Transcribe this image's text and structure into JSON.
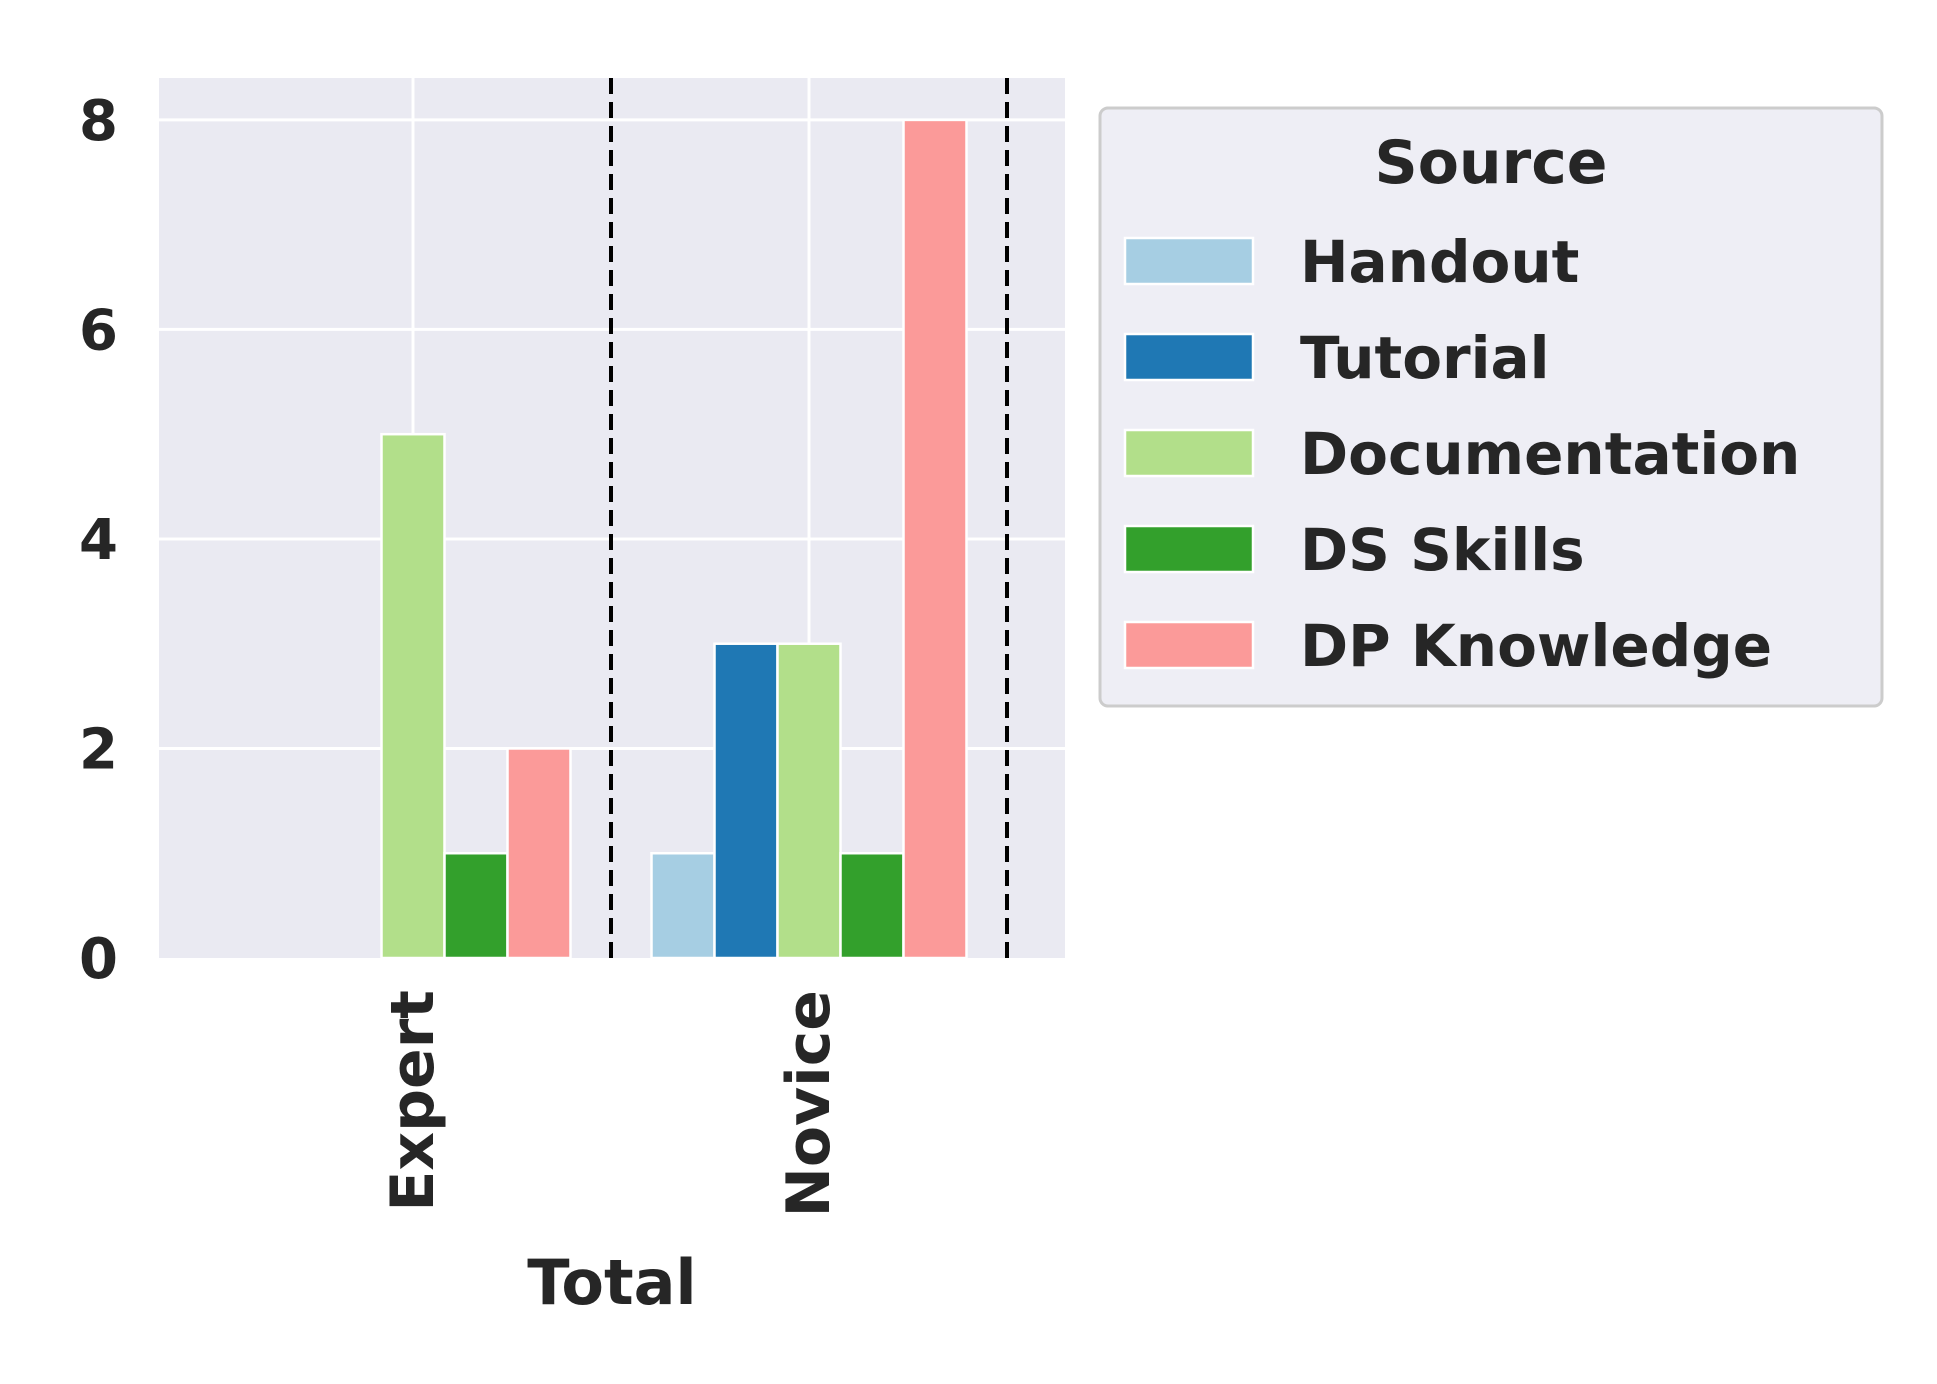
{
  "chart_data": {
    "type": "bar",
    "title": "",
    "xlabel": "Total",
    "ylabel": "",
    "categories": [
      "Expert",
      "Novice"
    ],
    "series": [
      {
        "name": "Handout",
        "color": "#a6cee3",
        "values": [
          0,
          1
        ]
      },
      {
        "name": "Tutorial",
        "color": "#1f78b4",
        "values": [
          0,
          3
        ]
      },
      {
        "name": "Documentation",
        "color": "#b2df8a",
        "values": [
          5,
          3
        ]
      },
      {
        "name": "DS Skills",
        "color": "#33a02c",
        "values": [
          1,
          1
        ]
      },
      {
        "name": "DP Knowledge",
        "color": "#fb9a99",
        "values": [
          2,
          8
        ]
      }
    ],
    "yticks": [
      0,
      2,
      4,
      6,
      8
    ],
    "ylim": [
      0,
      8.4
    ],
    "grid": true,
    "group_separators": "dashed vertical lines after each category",
    "legend": {
      "title": "Source",
      "placement": "outside right, top"
    },
    "background_color": "#eaeaf2"
  }
}
